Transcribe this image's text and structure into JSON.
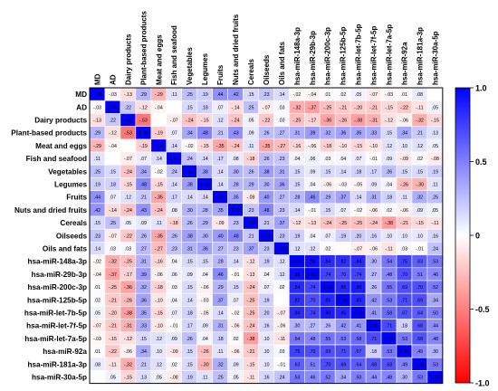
{
  "chart_data": {
    "type": "heatmap",
    "title": "",
    "labels": [
      "MD",
      "AD",
      "Dairy products",
      "Plant-based products",
      "Meat and eggs",
      "Fish and seafood",
      "Vegetables",
      "Legumes",
      "Fruits",
      "Nuts and dried fruits",
      "Cereals",
      "Oilseeds",
      "Oils and fats",
      "hsa-miR-148a-3p",
      "hsa-miR-29b-3p",
      "hsa-miR-200c-3p",
      "hsa-miR-125b-5p",
      "hsa-miR-let-7b-5p",
      "hsa-miR-let-7f-5p",
      "hsa-miR-let-7a-5p",
      "hsa-miR-92a",
      "hsa-miR-181a-3p",
      "hsa-miR-30a-5p"
    ],
    "matrix": [
      [
        1.0,
        -0.03,
        -0.13,
        0.29,
        -0.29,
        0.11,
        0.25,
        0.19,
        0.44,
        0.42,
        0.15,
        0.23,
        0.14,
        -0.02,
        -0.04,
        0.01,
        0.02,
        0.05,
        -0.07,
        -0.03,
        0.01,
        0.08,
        null
      ],
      [
        -0.03,
        1.0,
        0.22,
        -0.12,
        -0.04,
        null,
        0.15,
        0.18,
        0.07,
        -0.14,
        0.25,
        -0.07,
        0.03,
        -0.32,
        -0.37,
        -0.25,
        -0.21,
        -0.2,
        -0.21,
        -0.15,
        -0.22,
        -0.11,
        0.05
      ],
      [
        -0.13,
        0.22,
        1.0,
        -0.53,
        null,
        -0.07,
        -0.24,
        -0.15,
        0.12,
        -0.24,
        0.05,
        -0.22,
        0.03,
        -0.25,
        -0.17,
        -0.36,
        -0.26,
        -0.38,
        -0.31,
        -0.12,
        -0.06,
        -0.32,
        -0.15
      ],
      [
        0.29,
        -0.12,
        -0.53,
        1.0,
        -0.19,
        0.07,
        0.34,
        0.48,
        0.21,
        0.43,
        0.09,
        0.26,
        0.27,
        0.31,
        0.39,
        0.32,
        0.36,
        0.35,
        0.33,
        0.15,
        0.34,
        0.21,
        0.13
      ],
      [
        -0.29,
        -0.04,
        null,
        -0.19,
        1.0,
        0.14,
        -0.02,
        -0.15,
        -0.35,
        -0.24,
        0.11,
        -0.35,
        -0.27,
        -0.16,
        -0.06,
        -0.18,
        -0.1,
        -0.15,
        -0.1,
        0.12,
        0.1,
        0.12,
        0.05
      ],
      [
        0.11,
        null,
        -0.07,
        0.07,
        0.14,
        1.0,
        0.24,
        0.14,
        0.17,
        0.08,
        -0.18,
        0.26,
        0.23,
        0.04,
        0.06,
        0.03,
        0.04,
        0.07,
        -0.01,
        0.09,
        -0.09,
        0.02,
        -0.08
      ],
      [
        0.25,
        0.15,
        -0.24,
        0.34,
        -0.02,
        0.24,
        1.0,
        0.38,
        0.14,
        0.3,
        0.26,
        0.38,
        0.31,
        0.15,
        0.09,
        0.15,
        0.14,
        0.18,
        0.17,
        0.26,
        0.15,
        0.15,
        0.19
      ],
      [
        0.19,
        0.18,
        -0.15,
        0.48,
        -0.15,
        0.14,
        0.38,
        1.0,
        0.14,
        0.28,
        0.29,
        0.3,
        0.36,
        0.15,
        0.04,
        -0.06,
        -0.03,
        -0.05,
        0.09,
        0.04,
        -0.26,
        -0.3,
        0.11
      ],
      [
        0.44,
        0.07,
        0.12,
        0.21,
        -0.35,
        0.17,
        0.14,
        0.14,
        1.0,
        0.35,
        -0.09,
        0.4,
        0.27,
        0.28,
        0.46,
        0.29,
        0.37,
        0.14,
        0.31,
        0.18,
        0.11,
        0.32,
        0.25
      ],
      [
        0.42,
        -0.14,
        -0.24,
        0.43,
        -0.24,
        0.08,
        0.3,
        0.28,
        0.35,
        1.0,
        0.23,
        0.48,
        0.23,
        0.14,
        -0.01,
        0.15,
        0.07,
        -0.02,
        -0.06,
        0.02,
        -0.06,
        0.09,
        0.05
      ],
      [
        0.15,
        0.25,
        0.05,
        0.09,
        0.11,
        -0.18,
        0.26,
        0.29,
        -0.09,
        0.23,
        1.0,
        0.21,
        0.37,
        -0.12,
        -0.13,
        -0.24,
        -0.25,
        -0.25,
        -0.24,
        -0.38,
        -0.21,
        -0.15,
        -0.11
      ],
      [
        0.23,
        -0.07,
        -0.22,
        0.26,
        -0.35,
        0.26,
        0.38,
        0.3,
        0.4,
        0.48,
        0.21,
        1.0,
        0.23,
        0.19,
        0.04,
        0.07,
        0.19,
        0.2,
        0.16,
        0.1,
        0.1,
        0.1,
        0.16
      ],
      [
        0.14,
        0.03,
        0.03,
        0.27,
        -0.27,
        0.23,
        0.31,
        0.36,
        0.27,
        0.23,
        0.37,
        0.23,
        1.0,
        0.12,
        0.12,
        0.02,
        null,
        -0.07,
        -0.06,
        -0.11,
        0.03,
        -0.01,
        0.24
      ],
      [
        -0.02,
        -0.32,
        -0.25,
        0.31,
        -0.16,
        0.04,
        0.15,
        0.15,
        0.28,
        0.14,
        -0.12,
        0.19,
        0.12,
        1.0,
        0.95,
        0.84,
        0.82,
        0.84,
        0.3,
        0.54,
        0.75,
        0.63,
        0.53
      ],
      [
        -0.04,
        -0.37,
        -0.17,
        0.39,
        -0.06,
        0.06,
        0.09,
        0.04,
        0.46,
        -0.01,
        -0.13,
        0.04,
        0.12,
        0.95,
        1.0,
        0.74,
        0.7,
        0.74,
        0.27,
        0.48,
        0.7,
        0.51,
        0.46
      ],
      [
        0.01,
        -0.25,
        -0.36,
        0.32,
        -0.18,
        0.03,
        0.15,
        -0.06,
        0.29,
        0.15,
        -0.24,
        0.07,
        0.02,
        0.84,
        0.74,
        1.0,
        0.85,
        0.9,
        0.26,
        0.55,
        0.69,
        0.7,
        0.52
      ],
      [
        0.02,
        -0.21,
        -0.26,
        0.36,
        -0.1,
        0.04,
        0.14,
        -0.03,
        0.37,
        0.07,
        -0.25,
        0.19,
        null,
        0.82,
        0.7,
        0.85,
        1.0,
        0.85,
        0.42,
        0.53,
        0.71,
        0.69,
        0.34
      ],
      [
        0.05,
        -0.2,
        -0.38,
        0.35,
        -0.15,
        0.07,
        0.18,
        -0.05,
        0.14,
        -0.02,
        -0.25,
        0.2,
        -0.07,
        0.84,
        0.74,
        0.9,
        0.85,
        1.0,
        0.41,
        0.58,
        0.67,
        0.64,
        0.5
      ],
      [
        -0.07,
        -0.21,
        -0.31,
        0.33,
        -0.1,
        -0.01,
        0.17,
        0.09,
        0.31,
        -0.06,
        -0.24,
        0.16,
        -0.06,
        0.3,
        0.27,
        0.26,
        0.42,
        0.41,
        1.0,
        0.71,
        0.18,
        0.68,
        0.44
      ],
      [
        -0.03,
        -0.15,
        -0.12,
        0.15,
        0.12,
        0.09,
        0.26,
        0.04,
        0.18,
        0.02,
        -0.38,
        0.1,
        -0.11,
        0.54,
        0.48,
        0.55,
        0.53,
        0.58,
        0.71,
        1.0,
        0.53,
        0.68,
        0.48
      ],
      [
        0.01,
        -0.22,
        -0.06,
        0.34,
        0.1,
        -0.09,
        0.15,
        -0.26,
        0.11,
        -0.06,
        -0.21,
        0.1,
        0.03,
        0.75,
        0.7,
        0.69,
        0.71,
        0.67,
        0.18,
        0.53,
        1.0,
        0.49,
        0.3
      ],
      [
        0.08,
        -0.11,
        -0.32,
        0.21,
        0.12,
        0.02,
        0.15,
        -0.3,
        0.32,
        0.09,
        -0.15,
        0.1,
        -0.01,
        0.63,
        0.51,
        0.7,
        0.69,
        0.64,
        0.68,
        0.68,
        0.49,
        1.0,
        0.53
      ],
      [
        null,
        0.05,
        -0.15,
        0.13,
        0.05,
        -0.08,
        0.19,
        0.11,
        0.25,
        0.05,
        -0.11,
        0.16,
        0.24,
        0.53,
        0.46,
        0.52,
        0.34,
        0.5,
        0.44,
        0.48,
        0.3,
        0.53,
        1.0
      ]
    ],
    "colorbar": {
      "colors": [
        "#ff0000",
        "#ffffff",
        "#0000ff"
      ],
      "range": [
        -1.0,
        1.0
      ],
      "ticks": [
        "1.0",
        "0.5",
        "0",
        "-0.5",
        "-1.0"
      ],
      "tick_values": [
        1.0,
        0.5,
        0,
        -0.5,
        -1.0
      ]
    }
  }
}
